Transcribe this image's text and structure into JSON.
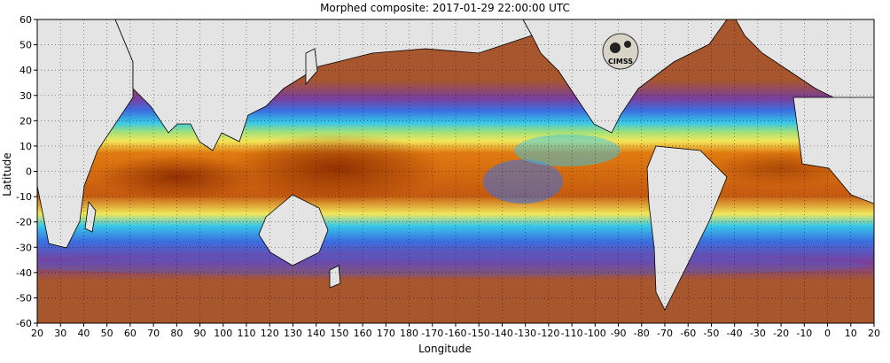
{
  "title": "Morphed composite: 2017-01-29 22:00:00 UTC",
  "xlabel": "Longitude",
  "ylabel": "Latitude",
  "logo_text": "CIMSS",
  "x_ticks": [
    "20",
    "30",
    "40",
    "50",
    "60",
    "70",
    "80",
    "90",
    "100",
    "110",
    "120",
    "130",
    "140",
    "150",
    "160",
    "170",
    "180",
    "-170",
    "-160",
    "-150",
    "-140",
    "-130",
    "-120",
    "-110",
    "-100",
    "-90",
    "-80",
    "-70",
    "-60",
    "-50",
    "-40",
    "-30",
    "-20",
    "-10",
    "0",
    "10",
    "20"
  ],
  "y_ticks": [
    "60",
    "50",
    "40",
    "30",
    "20",
    "10",
    "0",
    "-10",
    "-20",
    "-30",
    "-40",
    "-50",
    "-60"
  ],
  "colors": {
    "ocean_dry": "#a8562e",
    "purple": "#7a3f9c",
    "blue": "#3a6fe0",
    "cyan": "#38c8e8",
    "green": "#9fe07a",
    "yellow": "#f3e65a",
    "orange": "#e07a10",
    "deep": "#8a2a00",
    "land": "#e4e4e4"
  }
}
